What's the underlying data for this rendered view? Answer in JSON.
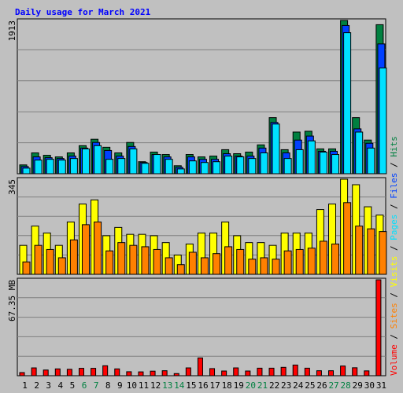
{
  "chart_data": {
    "title": "Daily usage for March 2021",
    "type": "bar",
    "days": [
      1,
      2,
      3,
      4,
      5,
      6,
      7,
      8,
      9,
      10,
      11,
      12,
      13,
      14,
      15,
      16,
      17,
      18,
      19,
      20,
      21,
      22,
      23,
      24,
      25,
      26,
      27,
      28,
      29,
      30,
      31
    ],
    "weekend_days": [
      6,
      7,
      13,
      14,
      20,
      21,
      27,
      28
    ],
    "panels": [
      {
        "name": "hits-files-pages",
        "max_label": "1913",
        "max_value": 1913,
        "series": [
          {
            "name": "Hits",
            "color": "#008040",
            "values": [
              110,
              260,
              230,
              210,
              260,
              350,
              430,
              330,
              260,
              390,
              150,
              270,
              240,
              100,
              240,
              210,
              220,
              300,
              250,
              270,
              360,
              700,
              300,
              520,
              530,
              310,
              310,
              1913,
              700,
              420,
              1860
            ]
          },
          {
            "name": "Files",
            "color": "#0040ff",
            "values": [
              90,
              210,
              200,
              190,
              220,
              320,
              390,
              290,
              220,
              340,
              140,
              240,
              210,
              80,
              210,
              180,
              180,
              250,
              220,
              220,
              320,
              640,
              260,
              420,
              470,
              280,
              280,
              1850,
              560,
              380,
              1620
            ]
          },
          {
            "name": "Pages",
            "color": "#00e0ff",
            "values": [
              70,
              170,
              180,
              170,
              190,
              310,
              350,
              180,
              190,
              310,
              130,
              240,
              180,
              60,
              160,
              140,
              150,
              220,
              210,
              190,
              260,
              620,
              190,
              300,
              410,
              270,
              240,
              1760,
              520,
              320,
              1320
            ]
          }
        ]
      },
      {
        "name": "visits-sites",
        "max_label": "345",
        "max_value": 345,
        "series": [
          {
            "name": "Visits",
            "color": "#ffff00",
            "values": [
              105,
              175,
              150,
              105,
              190,
              255,
              270,
              140,
              170,
              145,
              145,
              140,
              115,
              70,
              110,
              150,
              150,
              190,
              140,
              115,
              115,
              105,
              150,
              150,
              150,
              235,
              255,
              345,
              325,
              245,
              215
            ]
          },
          {
            "name": "Sites",
            "color": "#ff8000",
            "values": [
              45,
              105,
              90,
              60,
              125,
              180,
              190,
              85,
              115,
              105,
              100,
              90,
              60,
              35,
              80,
              60,
              75,
              100,
              90,
              55,
              60,
              55,
              85,
              90,
              95,
              120,
              110,
              260,
              175,
              165,
              155
            ]
          }
        ]
      },
      {
        "name": "volume",
        "max_label": "67.35 MB",
        "max_value": 67.35,
        "series": [
          {
            "name": "Volume",
            "color": "#ff0000",
            "values": [
              2.2,
              5.5,
              4.0,
              4.8,
              4.5,
              5.2,
              5.2,
              7.0,
              4.8,
              2.8,
              2.7,
              3.2,
              3.5,
              1.5,
              5.5,
              12.5,
              5.0,
              3.3,
              5.5,
              3.3,
              5.3,
              5.3,
              5.9,
              7.5,
              5.3,
              3.5,
              3.5,
              6.8,
              5.6,
              3.4,
              67.35
            ]
          }
        ]
      }
    ],
    "legend_right": [
      "Volume",
      "Sites",
      "Visits",
      "Pages",
      "Files",
      "Hits"
    ],
    "legend_colors": {
      "Volume": "#ff0000",
      "Sites": "#ff8000",
      "Visits": "#ffff00",
      "Pages": "#00e0ff",
      "Files": "#0040ff",
      "Hits": "#008040"
    },
    "legend_separator": "/",
    "day_label_color": "#000000",
    "weekend_label_color": "#008040",
    "title_color": "#0000ff",
    "grid": true
  }
}
